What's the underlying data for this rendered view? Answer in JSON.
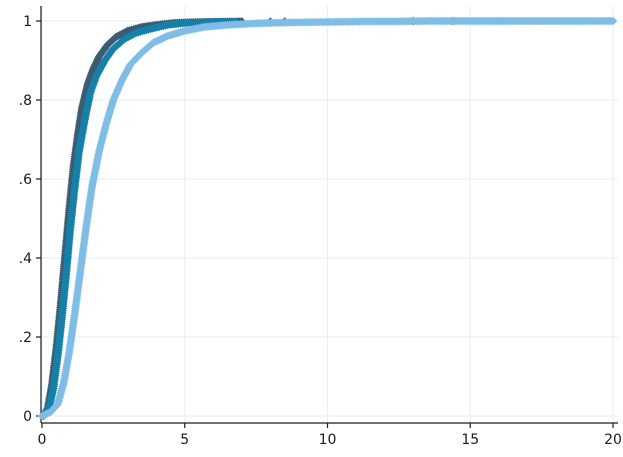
{
  "chart_data": {
    "type": "scatter",
    "title": "",
    "xlabel": "",
    "ylabel": "",
    "xlim": [
      0,
      20
    ],
    "ylim": [
      0,
      1
    ],
    "grid": true,
    "legend": "none",
    "x_ticks": [
      0,
      5,
      10,
      15,
      20
    ],
    "x_tick_labels": [
      "0",
      "5",
      "10",
      "15",
      "20"
    ],
    "y_ticks": [
      0,
      0.2,
      0.4,
      0.6,
      0.8,
      1
    ],
    "y_tick_labels": [
      "0",
      ".2",
      ".4",
      ".6",
      ".8",
      "1"
    ],
    "series": [
      {
        "color": "#3b5c72",
        "marker": "diamond",
        "points": [
          [
            0.05,
            0.0
          ],
          [
            0.2,
            0.02
          ],
          [
            0.35,
            0.08
          ],
          [
            0.5,
            0.17
          ],
          [
            0.65,
            0.28
          ],
          [
            0.8,
            0.4
          ],
          [
            0.95,
            0.52
          ],
          [
            1.1,
            0.63
          ],
          [
            1.25,
            0.71
          ],
          [
            1.4,
            0.78
          ],
          [
            1.6,
            0.84
          ],
          [
            1.8,
            0.88
          ],
          [
            2.0,
            0.91
          ],
          [
            2.3,
            0.94
          ],
          [
            2.6,
            0.96
          ],
          [
            3.0,
            0.975
          ],
          [
            3.5,
            0.985
          ],
          [
            4.0,
            0.99
          ],
          [
            4.6,
            0.995
          ],
          [
            5.3,
            0.997
          ],
          [
            6.3,
            0.998
          ],
          [
            7.0,
            0.999
          ],
          [
            8.5,
            0.999
          ],
          [
            13.0,
            1.0
          ]
        ]
      },
      {
        "color": "#1580a8",
        "marker": "diamond",
        "points": [
          [
            0.05,
            0.0
          ],
          [
            0.25,
            0.02
          ],
          [
            0.4,
            0.07
          ],
          [
            0.55,
            0.15
          ],
          [
            0.7,
            0.25
          ],
          [
            0.85,
            0.36
          ],
          [
            1.0,
            0.48
          ],
          [
            1.15,
            0.58
          ],
          [
            1.3,
            0.67
          ],
          [
            1.5,
            0.75
          ],
          [
            1.7,
            0.82
          ],
          [
            1.9,
            0.86
          ],
          [
            2.2,
            0.9
          ],
          [
            2.5,
            0.93
          ],
          [
            2.9,
            0.955
          ],
          [
            3.3,
            0.97
          ],
          [
            3.8,
            0.98
          ],
          [
            4.4,
            0.99
          ],
          [
            5.0,
            0.995
          ],
          [
            5.8,
            0.997
          ],
          [
            6.8,
            0.998
          ],
          [
            8.0,
            0.999
          ],
          [
            14.4,
            1.0
          ]
        ]
      },
      {
        "color": "#7fbde6",
        "marker": "diamond",
        "points": [
          [
            0.0,
            0.0
          ],
          [
            0.3,
            0.01
          ],
          [
            0.55,
            0.03
          ],
          [
            0.75,
            0.08
          ],
          [
            0.95,
            0.16
          ],
          [
            1.15,
            0.26
          ],
          [
            1.35,
            0.37
          ],
          [
            1.55,
            0.48
          ],
          [
            1.75,
            0.58
          ],
          [
            2.0,
            0.67
          ],
          [
            2.25,
            0.74
          ],
          [
            2.5,
            0.8
          ],
          [
            2.8,
            0.85
          ],
          [
            3.1,
            0.89
          ],
          [
            3.5,
            0.92
          ],
          [
            3.9,
            0.945
          ],
          [
            4.4,
            0.962
          ],
          [
            5.0,
            0.975
          ],
          [
            5.7,
            0.985
          ],
          [
            6.5,
            0.99
          ],
          [
            7.5,
            0.994
          ],
          [
            8.5,
            0.996
          ],
          [
            9.5,
            0.997
          ],
          [
            10.5,
            0.998
          ],
          [
            11.5,
            0.999
          ],
          [
            12.5,
            0.999
          ],
          [
            13.5,
            1.0
          ],
          [
            14.5,
            1.0
          ],
          [
            15.0,
            1.0
          ],
          [
            15.5,
            1.0
          ],
          [
            16.0,
            1.0
          ],
          [
            16.5,
            1.0
          ],
          [
            17.0,
            1.0
          ],
          [
            17.5,
            1.0
          ],
          [
            18.0,
            1.0
          ],
          [
            18.5,
            1.0
          ],
          [
            19.0,
            1.0
          ],
          [
            20.0,
            1.0
          ]
        ]
      }
    ]
  }
}
